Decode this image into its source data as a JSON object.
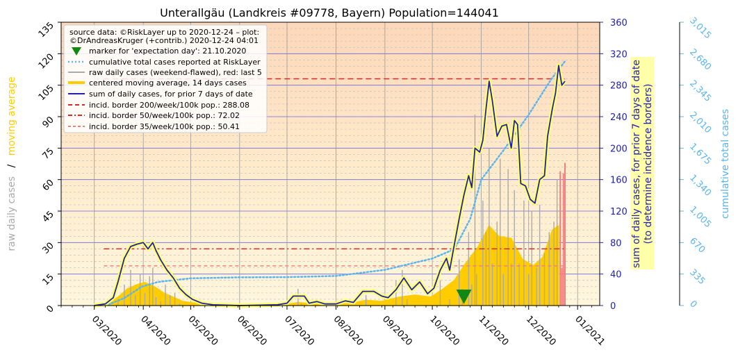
{
  "chart_data": {
    "type": "line",
    "title": "Unterallgäu (Landkreis #09778, Bayern) Population=144041",
    "left_axis": {
      "label_part1": "raw daily cases",
      "label_sep": "/",
      "label_part2": "moving average",
      "ylim": [
        0,
        135
      ],
      "ticks": [
        "0",
        "15",
        "30",
        "45",
        "60",
        "75",
        "90",
        "105",
        "120",
        "135"
      ]
    },
    "right_axis": {
      "label_line1": "sum of daily cases, for prior 7 days of date",
      "label_line2": "(to determine incidence borders)",
      "ylim": [
        0,
        360
      ],
      "ticks": [
        "0",
        "40",
        "80",
        "120",
        "160",
        "200",
        "240",
        "280",
        "320",
        "360"
      ]
    },
    "far_right_axis": {
      "label": "cumulative total cases",
      "ylim": [
        0,
        3015
      ],
      "ticks": [
        "0",
        "335",
        "670",
        "1,005",
        "1,340",
        "1,675",
        "2,010",
        "2,345",
        "2,680",
        "3,015"
      ]
    },
    "x_axis": {
      "start": "2020-02-09",
      "ticks": [
        "03/2020",
        "04/2020",
        "05/2020",
        "06/2020",
        "07/2020",
        "08/2020",
        "09/2020",
        "10/2020",
        "11/2020",
        "12/2020",
        "01/2021"
      ]
    },
    "legend": {
      "placement": "top-left",
      "source_line1": "source data: ©RiskLayer up to 2020-12-24 – plot:",
      "source_line2": "©DrAndreasKruger (+contrib.) 2020-12-24 04:01",
      "entries": [
        "marker for 'expectation day': 21.10.2020",
        "cumulative total cases reported at RiskLayer",
        "raw daily cases (weekend-flawed), red: last 5",
        "centered moving average, 14 days cases",
        "sum of daily cases, for prior 7 days of date",
        "incid. border 200/week/100k pop.: 288.08",
        "incid. border 50/week/100k pop.: 72.02",
        "incid. border 35/week/100k pop.: 50.41"
      ]
    },
    "incidence_borders": [
      {
        "label": "200/week/100k",
        "value": 288.08,
        "color": "#d62728"
      },
      {
        "label": "50/week/100k",
        "value": 72.02,
        "color": "#d62728"
      },
      {
        "label": "35/week/100k",
        "value": 50.41,
        "color": "#f08080"
      }
    ],
    "expectation_day": "2020-10-21",
    "colors": {
      "raw": "#aaaaaa",
      "raw_last5": "#f08080",
      "moving_average": "#ffcc00",
      "sum7": "#1f1fb4",
      "cumulative": "#5ab4f0",
      "left_label_raw": "#aaaaaa",
      "left_label_ma": "#ffcc00",
      "right_axis": "#2020b0",
      "far_right_axis": "#5ab4f0",
      "marker": "#118811"
    },
    "sum7_points": [
      [
        "2020-03-01",
        0
      ],
      [
        "2020-03-08",
        2
      ],
      [
        "2020-03-13",
        10
      ],
      [
        "2020-03-16",
        30
      ],
      [
        "2020-03-20",
        60
      ],
      [
        "2020-03-24",
        75
      ],
      [
        "2020-03-28",
        78
      ],
      [
        "2020-04-01",
        80
      ],
      [
        "2020-04-04",
        72
      ],
      [
        "2020-04-07",
        80
      ],
      [
        "2020-04-09",
        70
      ],
      [
        "2020-04-12",
        58
      ],
      [
        "2020-04-16",
        45
      ],
      [
        "2020-04-20",
        35
      ],
      [
        "2020-04-24",
        22
      ],
      [
        "2020-04-28",
        14
      ],
      [
        "2020-05-02",
        8
      ],
      [
        "2020-05-08",
        3
      ],
      [
        "2020-05-15",
        1
      ],
      [
        "2020-06-01",
        0
      ],
      [
        "2020-06-25",
        1
      ],
      [
        "2020-07-01",
        3
      ],
      [
        "2020-07-05",
        12
      ],
      [
        "2020-07-12",
        12
      ],
      [
        "2020-07-15",
        3
      ],
      [
        "2020-07-20",
        5
      ],
      [
        "2020-07-25",
        2
      ],
      [
        "2020-08-01",
        2
      ],
      [
        "2020-08-07",
        6
      ],
      [
        "2020-08-12",
        4
      ],
      [
        "2020-08-18",
        18
      ],
      [
        "2020-08-25",
        18
      ],
      [
        "2020-08-30",
        12
      ],
      [
        "2020-09-03",
        10
      ],
      [
        "2020-09-08",
        20
      ],
      [
        "2020-09-13",
        35
      ],
      [
        "2020-09-18",
        20
      ],
      [
        "2020-09-23",
        30
      ],
      [
        "2020-09-28",
        15
      ],
      [
        "2020-10-02",
        22
      ],
      [
        "2020-10-06",
        45
      ],
      [
        "2020-10-10",
        60
      ],
      [
        "2020-10-12",
        45
      ],
      [
        "2020-10-15",
        78
      ],
      [
        "2020-10-18",
        110
      ],
      [
        "2020-10-21",
        140
      ],
      [
        "2020-10-24",
        165
      ],
      [
        "2020-10-26",
        150
      ],
      [
        "2020-10-28",
        200
      ],
      [
        "2020-10-31",
        195
      ],
      [
        "2020-11-02",
        210
      ],
      [
        "2020-11-04",
        250
      ],
      [
        "2020-11-06",
        285
      ],
      [
        "2020-11-08",
        260
      ],
      [
        "2020-11-11",
        215
      ],
      [
        "2020-11-14",
        228
      ],
      [
        "2020-11-17",
        230
      ],
      [
        "2020-11-20",
        200
      ],
      [
        "2020-11-22",
        235
      ],
      [
        "2020-11-24",
        230
      ],
      [
        "2020-11-26",
        155
      ],
      [
        "2020-11-29",
        152
      ],
      [
        "2020-12-02",
        135
      ],
      [
        "2020-12-05",
        130
      ],
      [
        "2020-12-08",
        160
      ],
      [
        "2020-12-11",
        165
      ],
      [
        "2020-12-13",
        215
      ],
      [
        "2020-12-16",
        250
      ],
      [
        "2020-12-18",
        270
      ],
      [
        "2020-12-20",
        305
      ],
      [
        "2020-12-22",
        280
      ],
      [
        "2020-12-24",
        285
      ]
    ],
    "moving_avg_points": [
      [
        "2020-03-01",
        0
      ],
      [
        "2020-03-10",
        1
      ],
      [
        "2020-03-16",
        4
      ],
      [
        "2020-03-22",
        8
      ],
      [
        "2020-03-28",
        10
      ],
      [
        "2020-04-02",
        11
      ],
      [
        "2020-04-08",
        9
      ],
      [
        "2020-04-14",
        6
      ],
      [
        "2020-04-20",
        4
      ],
      [
        "2020-04-26",
        2
      ],
      [
        "2020-05-05",
        1
      ],
      [
        "2020-05-15",
        0
      ],
      [
        "2020-07-01",
        0.5
      ],
      [
        "2020-07-08",
        1.5
      ],
      [
        "2020-07-15",
        1
      ],
      [
        "2020-07-25",
        0.5
      ],
      [
        "2020-08-10",
        1
      ],
      [
        "2020-08-20",
        2.5
      ],
      [
        "2020-08-30",
        2
      ],
      [
        "2020-09-10",
        4
      ],
      [
        "2020-09-20",
        5
      ],
      [
        "2020-09-30",
        4
      ],
      [
        "2020-10-08",
        8
      ],
      [
        "2020-10-15",
        12
      ],
      [
        "2020-10-22",
        20
      ],
      [
        "2020-10-30",
        28
      ],
      [
        "2020-11-06",
        38
      ],
      [
        "2020-11-12",
        33
      ],
      [
        "2020-11-20",
        32
      ],
      [
        "2020-11-27",
        22
      ],
      [
        "2020-12-04",
        19
      ],
      [
        "2020-12-10",
        23
      ],
      [
        "2020-12-16",
        36
      ],
      [
        "2020-12-20",
        38
      ]
    ],
    "raw_daily_points": [
      [
        "2020-03-16",
        3
      ],
      [
        "2020-03-20",
        10
      ],
      [
        "2020-03-24",
        17
      ],
      [
        "2020-03-27",
        5
      ],
      [
        "2020-03-30",
        15
      ],
      [
        "2020-04-02",
        6
      ],
      [
        "2020-04-05",
        14
      ],
      [
        "2020-04-07",
        18
      ],
      [
        "2020-04-09",
        4
      ],
      [
        "2020-04-12",
        2
      ],
      [
        "2020-04-15",
        10
      ],
      [
        "2020-04-18",
        5
      ],
      [
        "2020-04-21",
        6
      ],
      [
        "2020-04-24",
        1
      ],
      [
        "2020-07-08",
        8
      ],
      [
        "2020-07-10",
        1
      ],
      [
        "2020-08-20",
        5
      ],
      [
        "2020-09-08",
        12
      ],
      [
        "2020-09-12",
        17
      ],
      [
        "2020-09-15",
        3
      ],
      [
        "2020-10-06",
        12
      ],
      [
        "2020-10-12",
        3
      ],
      [
        "2020-10-18",
        22
      ],
      [
        "2020-10-20",
        8
      ],
      [
        "2020-10-24",
        35
      ],
      [
        "2020-10-26",
        10
      ],
      [
        "2020-10-28",
        91
      ],
      [
        "2020-10-29",
        15
      ],
      [
        "2020-11-02",
        50
      ],
      [
        "2020-11-04",
        35
      ],
      [
        "2020-11-06",
        75
      ],
      [
        "2020-11-08",
        20
      ],
      [
        "2020-11-11",
        40
      ],
      [
        "2020-11-13",
        70
      ],
      [
        "2020-11-15",
        15
      ],
      [
        "2020-11-18",
        65
      ],
      [
        "2020-11-20",
        20
      ],
      [
        "2020-11-22",
        55
      ],
      [
        "2020-11-25",
        20
      ],
      [
        "2020-11-28",
        50
      ],
      [
        "2020-12-01",
        15
      ],
      [
        "2020-12-03",
        45
      ],
      [
        "2020-12-06",
        18
      ],
      [
        "2020-12-08",
        48
      ],
      [
        "2020-12-11",
        25
      ],
      [
        "2020-12-14",
        35
      ],
      [
        "2020-12-17",
        40
      ],
      [
        "2020-12-19",
        60
      ]
    ],
    "raw_last5": [
      [
        "2020-12-20",
        0
      ],
      [
        "2020-12-21",
        64
      ],
      [
        "2020-12-22",
        18
      ],
      [
        "2020-12-23",
        63
      ],
      [
        "2020-12-24",
        68
      ]
    ],
    "cumulative_points": [
      [
        "2020-03-10",
        10
      ],
      [
        "2020-03-20",
        80
      ],
      [
        "2020-03-31",
        200
      ],
      [
        "2020-04-10",
        250
      ],
      [
        "2020-04-20",
        270
      ],
      [
        "2020-05-01",
        290
      ],
      [
        "2020-06-01",
        300
      ],
      [
        "2020-07-01",
        302
      ],
      [
        "2020-08-01",
        315
      ],
      [
        "2020-09-01",
        380
      ],
      [
        "2020-10-01",
        500
      ],
      [
        "2020-10-15",
        600
      ],
      [
        "2020-10-25",
        920
      ],
      [
        "2020-11-01",
        1340
      ],
      [
        "2020-11-15",
        1650
      ],
      [
        "2020-12-01",
        2030
      ],
      [
        "2020-12-15",
        2400
      ],
      [
        "2020-12-24",
        2600
      ]
    ]
  }
}
